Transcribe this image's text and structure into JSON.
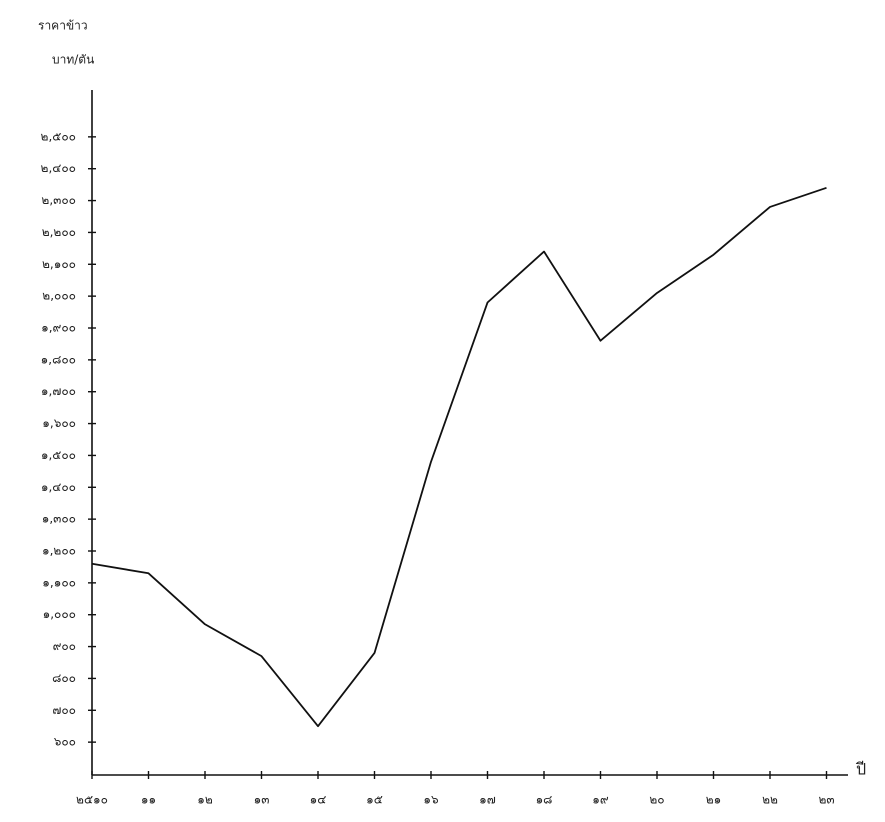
{
  "chart_data": {
    "type": "line",
    "y_label_line1": "ราคาข้าว",
    "y_label_line2": "บาท/ตัน",
    "x_label": "ปี",
    "categories": [
      "๒๕๑๐",
      "๑๑",
      "๑๒",
      "๑๓",
      "๑๔",
      "๑๕",
      "๑๖",
      "๑๗",
      "๑๘",
      "๑๙",
      "๒๐",
      "๒๑",
      "๒๒",
      "๒๓"
    ],
    "series": [
      {
        "name": "ราคาข้าว",
        "color": "#111111",
        "values": [
          1160,
          1130,
          970,
          870,
          650,
          880,
          1480,
          1980,
          2140,
          1860,
          2010,
          2130,
          2280,
          2340
        ]
      }
    ],
    "ylim": [
      500,
      2600
    ],
    "yticks": [
      {
        "value": 600,
        "label": "๖๐๐"
      },
      {
        "value": 700,
        "label": "๗๐๐"
      },
      {
        "value": 800,
        "label": "๘๐๐"
      },
      {
        "value": 900,
        "label": "๙๐๐"
      },
      {
        "value": 1000,
        "label": "๑,๐๐๐"
      },
      {
        "value": 1100,
        "label": "๑,๑๐๐"
      },
      {
        "value": 1200,
        "label": "๑,๒๐๐"
      },
      {
        "value": 1300,
        "label": "๑,๓๐๐"
      },
      {
        "value": 1400,
        "label": "๑,๔๐๐"
      },
      {
        "value": 1500,
        "label": "๑,๕๐๐"
      },
      {
        "value": 1600,
        "label": "๑,๖๐๐"
      },
      {
        "value": 1700,
        "label": "๑,๗๐๐"
      },
      {
        "value": 1800,
        "label": "๑,๘๐๐"
      },
      {
        "value": 1900,
        "label": "๑,๙๐๐"
      },
      {
        "value": 2000,
        "label": "๒,๐๐๐"
      },
      {
        "value": 2100,
        "label": "๒,๑๐๐"
      },
      {
        "value": 2200,
        "label": "๒,๒๐๐"
      },
      {
        "value": 2300,
        "label": "๒,๓๐๐"
      },
      {
        "value": 2400,
        "label": "๒,๔๐๐"
      },
      {
        "value": 2500,
        "label": "๒,๕๐๐"
      }
    ],
    "grid": false
  }
}
